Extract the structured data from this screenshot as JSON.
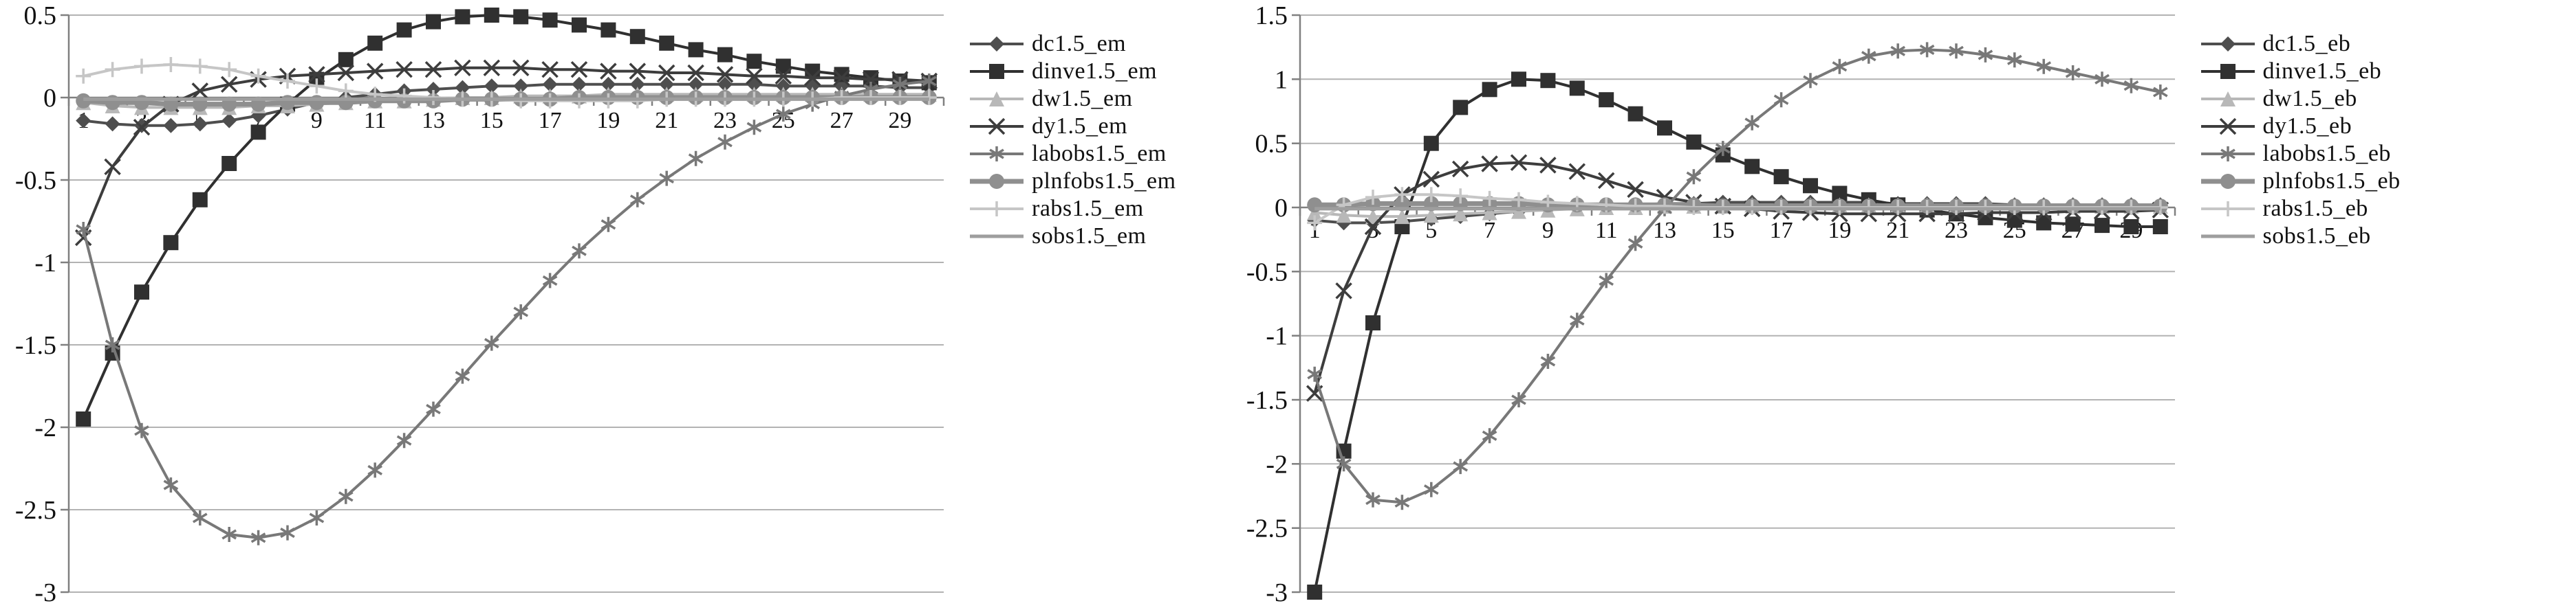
{
  "figure": {
    "background": "#ffffff"
  },
  "style": {
    "grid_color": "#b3b3b3",
    "axis_color": "#808080",
    "text_color": "#111111",
    "marker_size": 11
  },
  "chart_data": [
    {
      "type": "line",
      "title": "",
      "grid": true,
      "legend_position": "right",
      "x": [
        1,
        2,
        3,
        4,
        5,
        6,
        7,
        8,
        9,
        10,
        11,
        12,
        13,
        14,
        15,
        16,
        17,
        18,
        19,
        20,
        21,
        22,
        23,
        24,
        25,
        26,
        27,
        28,
        29,
        30
      ],
      "xticks": [
        1,
        3,
        5,
        7,
        9,
        11,
        13,
        15,
        17,
        19,
        21,
        23,
        25,
        27,
        29
      ],
      "ylim": [
        -3,
        0.5
      ],
      "yticks": [
        0.5,
        0,
        -0.5,
        -1,
        -1.5,
        -2,
        -2.5,
        -3
      ],
      "series": [
        {
          "name": "dc1.5_em",
          "marker": "diamond",
          "color": "#4e4e4e",
          "line_width": 4,
          "values": [
            -0.14,
            -0.16,
            -0.17,
            -0.17,
            -0.16,
            -0.14,
            -0.11,
            -0.07,
            -0.03,
            0,
            0.02,
            0.04,
            0.05,
            0.06,
            0.07,
            0.07,
            0.08,
            0.08,
            0.08,
            0.08,
            0.08,
            0.08,
            0.08,
            0.08,
            0.07,
            0.07,
            0.07,
            0.07,
            0.06,
            0.06
          ]
        },
        {
          "name": "dinve1.5_em",
          "marker": "square",
          "color": "#303030",
          "line_width": 4,
          "values": [
            -1.95,
            -1.55,
            -1.18,
            -0.88,
            -0.62,
            -0.4,
            -0.21,
            -0.04,
            0.11,
            0.23,
            0.33,
            0.41,
            0.46,
            0.49,
            0.5,
            0.49,
            0.47,
            0.44,
            0.41,
            0.37,
            0.33,
            0.29,
            0.26,
            0.22,
            0.19,
            0.16,
            0.14,
            0.12,
            0.1,
            0.09
          ]
        },
        {
          "name": "dw1.5_em",
          "marker": "triangle",
          "color": "#b8b8b8",
          "line_width": 4,
          "values": [
            -0.03,
            -0.05,
            -0.06,
            -0.06,
            -0.06,
            -0.06,
            -0.05,
            -0.05,
            -0.04,
            -0.03,
            -0.02,
            -0.02,
            -0.01,
            0,
            0,
            0.01,
            0.01,
            0.01,
            0.02,
            0.02,
            0.02,
            0.02,
            0.02,
            0.02,
            0.02,
            0.02,
            0.02,
            0.02,
            0.02,
            0.02
          ]
        },
        {
          "name": "dy1.5_em",
          "marker": "x",
          "color": "#3d3d3d",
          "line_width": 4,
          "values": [
            -0.85,
            -0.42,
            -0.18,
            -0.04,
            0.04,
            0.08,
            0.11,
            0.13,
            0.14,
            0.15,
            0.16,
            0.17,
            0.17,
            0.18,
            0.18,
            0.18,
            0.17,
            0.17,
            0.16,
            0.16,
            0.15,
            0.15,
            0.14,
            0.13,
            0.13,
            0.12,
            0.12,
            0.11,
            0.11,
            0.1
          ]
        },
        {
          "name": "labobs1.5_em",
          "marker": "asterisk",
          "color": "#787878",
          "line_width": 4,
          "values": [
            -0.8,
            -1.5,
            -2.02,
            -2.35,
            -2.55,
            -2.65,
            -2.67,
            -2.64,
            -2.55,
            -2.42,
            -2.26,
            -2.08,
            -1.89,
            -1.69,
            -1.49,
            -1.3,
            -1.11,
            -0.93,
            -0.77,
            -0.62,
            -0.49,
            -0.37,
            -0.27,
            -0.18,
            -0.1,
            -0.04,
            0.01,
            0.05,
            0.08,
            0.1
          ]
        },
        {
          "name": "plnfobs1.5_em",
          "marker": "circle",
          "color": "#8f8f8f",
          "line_width": 7,
          "values": [
            -0.02,
            -0.03,
            -0.03,
            -0.04,
            -0.04,
            -0.04,
            -0.04,
            -0.03,
            -0.03,
            -0.03,
            -0.02,
            -0.02,
            -0.02,
            -0.01,
            -0.01,
            -0.01,
            -0.01,
            0,
            0,
            0,
            0,
            0,
            0,
            0,
            0,
            0,
            0,
            0,
            0,
            0
          ]
        },
        {
          "name": "rabs1.5_em",
          "marker": "plus",
          "color": "#c6c6c6",
          "line_width": 4,
          "values": [
            0.13,
            0.17,
            0.19,
            0.2,
            0.19,
            0.17,
            0.13,
            0.1,
            0.07,
            0.04,
            0.02,
            0.01,
            0,
            -0.01,
            -0.01,
            -0.02,
            -0.02,
            -0.02,
            -0.02,
            -0.02,
            -0.01,
            -0.01,
            -0.01,
            -0.01,
            -0.01,
            -0.01,
            0,
            0,
            0,
            0
          ]
        },
        {
          "name": "sobs1.5_em",
          "marker": "none",
          "color": "#9e9e9e",
          "line_width": 5,
          "values": [
            -0.01,
            -0.01,
            -0.01,
            -0.01,
            -0.01,
            -0.01,
            -0.01,
            -0.01,
            -0.01,
            -0.01,
            -0.01,
            -0.01,
            -0.01,
            -0.01,
            -0.01,
            -0.01,
            -0.01,
            -0.01,
            -0.01,
            -0.01,
            -0.01,
            -0.01,
            -0.01,
            -0.01,
            -0.01,
            -0.01,
            -0.01,
            -0.01,
            -0.01,
            -0.01
          ]
        }
      ]
    },
    {
      "type": "line",
      "title": "",
      "grid": true,
      "legend_position": "right",
      "x": [
        1,
        2,
        3,
        4,
        5,
        6,
        7,
        8,
        9,
        10,
        11,
        12,
        13,
        14,
        15,
        16,
        17,
        18,
        19,
        20,
        21,
        22,
        23,
        24,
        25,
        26,
        27,
        28,
        29,
        30
      ],
      "xticks": [
        1,
        3,
        5,
        7,
        9,
        11,
        13,
        15,
        17,
        19,
        21,
        23,
        25,
        27,
        29
      ],
      "ylim": [
        -3,
        1.5
      ],
      "yticks": [
        1.5,
        1,
        0.5,
        0,
        -0.5,
        -1,
        -1.5,
        -2,
        -2.5,
        -3
      ],
      "series": [
        {
          "name": "dc1.5_eb",
          "marker": "diamond",
          "color": "#4e4e4e",
          "line_width": 4,
          "values": [
            -0.1,
            -0.12,
            -0.12,
            -0.11,
            -0.09,
            -0.07,
            -0.05,
            -0.03,
            -0.01,
            0,
            0.01,
            0.02,
            0.03,
            0.03,
            0.04,
            0.04,
            0.04,
            0.04,
            0.04,
            0.04,
            0.03,
            0.03,
            0.03,
            0.03,
            0.02,
            0.02,
            0.02,
            0.02,
            0.02,
            0.02
          ]
        },
        {
          "name": "dinve1.5_eb",
          "marker": "square",
          "color": "#303030",
          "line_width": 4,
          "values": [
            -3,
            -1.9,
            -0.9,
            -0.15,
            0.5,
            0.78,
            0.92,
            1,
            0.99,
            0.93,
            0.84,
            0.73,
            0.62,
            0.51,
            0.41,
            0.32,
            0.24,
            0.17,
            0.11,
            0.06,
            0.02,
            -0.02,
            -0.05,
            -0.08,
            -0.1,
            -0.12,
            -0.13,
            -0.14,
            -0.15,
            -0.15
          ]
        },
        {
          "name": "dw1.5_eb",
          "marker": "triangle",
          "color": "#b8b8b8",
          "line_width": 4,
          "values": [
            -0.04,
            -0.06,
            -0.07,
            -0.07,
            -0.06,
            -0.05,
            -0.04,
            -0.03,
            -0.02,
            -0.01,
            0,
            0,
            0.01,
            0.01,
            0.01,
            0.02,
            0.02,
            0.02,
            0.02,
            0.02,
            0.02,
            0.02,
            0.02,
            0.01,
            0.01,
            0.01,
            0.01,
            0.01,
            0.01,
            0.01
          ]
        },
        {
          "name": "dy1.5_eb",
          "marker": "x",
          "color": "#3d3d3d",
          "line_width": 4,
          "values": [
            -1.45,
            -0.65,
            -0.15,
            0.1,
            0.22,
            0.3,
            0.34,
            0.35,
            0.33,
            0.28,
            0.21,
            0.14,
            0.08,
            0.04,
            0.01,
            -0.01,
            -0.03,
            -0.04,
            -0.05,
            -0.05,
            -0.05,
            -0.05,
            -0.05,
            -0.04,
            -0.04,
            -0.04,
            -0.03,
            -0.03,
            -0.03,
            -0.02
          ]
        },
        {
          "name": "labobs1.5_eb",
          "marker": "asterisk",
          "color": "#787878",
          "line_width": 4,
          "values": [
            -1.3,
            -2,
            -2.28,
            -2.3,
            -2.2,
            -2.02,
            -1.78,
            -1.5,
            -1.2,
            -0.88,
            -0.57,
            -0.28,
            -0.01,
            0.24,
            0.46,
            0.66,
            0.84,
            0.99,
            1.1,
            1.18,
            1.22,
            1.23,
            1.22,
            1.19,
            1.15,
            1.1,
            1.05,
            1,
            0.95,
            0.9
          ]
        },
        {
          "name": "plnfobs1.5_eb",
          "marker": "circle",
          "color": "#8f8f8f",
          "line_width": 7,
          "values": [
            0.02,
            0.02,
            0.03,
            0.03,
            0.03,
            0.03,
            0.03,
            0.03,
            0.02,
            0.02,
            0.02,
            0.02,
            0.02,
            0.02,
            0.01,
            0.01,
            0.01,
            0.01,
            0.01,
            0.01,
            0.01,
            0.01,
            0.01,
            0.01,
            0.01,
            0.01,
            0.01,
            0.01,
            0.01,
            0.01
          ]
        },
        {
          "name": "rabs1.5_eb",
          "marker": "plus",
          "color": "#c6c6c6",
          "line_width": 4,
          "values": [
            -0.12,
            0.02,
            0.08,
            0.1,
            0.1,
            0.09,
            0.07,
            0.06,
            0.04,
            0.03,
            0.02,
            0.01,
            0.01,
            0,
            0,
            0,
            0,
            0,
            0,
            0,
            0,
            0,
            0,
            0,
            0,
            0,
            0,
            0,
            0,
            0
          ]
        },
        {
          "name": "sobs1.5_eb",
          "marker": "none",
          "color": "#9e9e9e",
          "line_width": 5,
          "values": [
            -0.01,
            -0.01,
            -0.01,
            -0.01,
            -0.01,
            -0.01,
            -0.01,
            -0.01,
            -0.01,
            -0.01,
            -0.01,
            -0.01,
            -0.01,
            -0.01,
            -0.01,
            -0.01,
            -0.01,
            -0.01,
            -0.01,
            -0.01,
            -0.01,
            -0.01,
            -0.01,
            -0.01,
            -0.01,
            -0.01,
            -0.01,
            -0.01,
            -0.01,
            -0.01
          ]
        }
      ]
    }
  ]
}
